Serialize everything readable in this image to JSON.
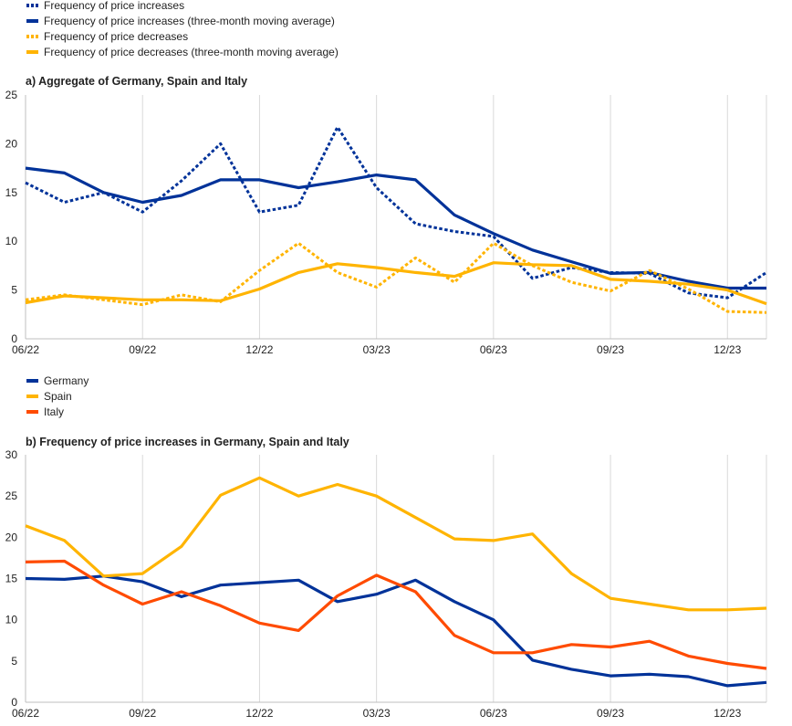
{
  "chart_data": [
    {
      "type": "line",
      "title": "a) Aggregate of Germany, Spain and Italy",
      "xlabel": "",
      "ylabel": "",
      "categories": [
        "06/22",
        "07/22",
        "08/22",
        "09/22",
        "10/22",
        "11/22",
        "12/22",
        "01/23",
        "02/23",
        "03/23",
        "04/23",
        "05/23",
        "06/23",
        "07/23",
        "08/23",
        "09/23",
        "10/23",
        "11/23",
        "12/23",
        "01/24"
      ],
      "x_tick_labels": [
        "06/22",
        "09/22",
        "12/22",
        "03/23",
        "06/23",
        "09/23",
        "12/23"
      ],
      "ylim": [
        0,
        25
      ],
      "y_ticks": [
        0,
        5,
        10,
        15,
        20,
        25
      ],
      "grid": "vertical",
      "legend_position": "top-left",
      "series": [
        {
          "name": "Frequency of price increases",
          "color": "#003299",
          "style": "dotted",
          "values": [
            16,
            14,
            15,
            13,
            16.2,
            20,
            13,
            13.7,
            21.7,
            15.5,
            11.8,
            11,
            10.5,
            6.2,
            7.3,
            6.8,
            6.7,
            4.7,
            4.2,
            6.8
          ]
        },
        {
          "name": "Frequency of price increases (three-month moving average)",
          "color": "#003299",
          "style": "solid",
          "values": [
            17.5,
            17,
            15,
            14,
            14.7,
            16.3,
            16.3,
            15.5,
            16.1,
            16.8,
            16.3,
            12.7,
            10.8,
            9.1,
            7.9,
            6.7,
            6.8,
            5.9,
            5.2,
            5.2
          ]
        },
        {
          "name": "Frequency of price decreases",
          "color": "#FFB400",
          "style": "dotted",
          "values": [
            4,
            4.5,
            4,
            3.5,
            4.5,
            3.8,
            7,
            9.8,
            6.8,
            5.3,
            8.3,
            5.8,
            9.8,
            7.5,
            5.8,
            4.9,
            7,
            5.1,
            2.8,
            2.7
          ]
        },
        {
          "name": "Frequency of price decreases (three-month moving average)",
          "color": "#FFB400",
          "style": "solid",
          "values": [
            3.7,
            4.4,
            4.2,
            4,
            4,
            3.9,
            5.1,
            6.8,
            7.7,
            7.3,
            6.8,
            6.4,
            7.8,
            7.6,
            7.5,
            6.1,
            5.9,
            5.6,
            5,
            3.6
          ]
        }
      ]
    },
    {
      "type": "line",
      "title": "b) Frequency of price increases in Germany, Spain and Italy",
      "xlabel": "",
      "ylabel": "",
      "categories": [
        "06/22",
        "07/22",
        "08/22",
        "09/22",
        "10/22",
        "11/22",
        "12/22",
        "01/23",
        "02/23",
        "03/23",
        "04/23",
        "05/23",
        "06/23",
        "07/23",
        "08/23",
        "09/23",
        "10/23",
        "11/23",
        "12/23",
        "01/24"
      ],
      "x_tick_labels": [
        "06/22",
        "09/22",
        "12/22",
        "03/23",
        "06/23",
        "09/23",
        "12/23"
      ],
      "ylim": [
        0,
        30
      ],
      "y_ticks": [
        0,
        5,
        10,
        15,
        20,
        25,
        30
      ],
      "grid": "vertical",
      "legend_position": "top-left",
      "series": [
        {
          "name": "Germany",
          "color": "#003299",
          "style": "solid",
          "values": [
            15,
            14.9,
            15.3,
            14.6,
            12.8,
            14.2,
            14.5,
            14.8,
            12.2,
            13.1,
            14.8,
            12.2,
            10,
            5.1,
            4,
            3.2,
            3.4,
            3.1,
            2,
            2.4
          ]
        },
        {
          "name": "Spain",
          "color": "#FFB400",
          "style": "solid",
          "values": [
            21.4,
            19.6,
            15.3,
            15.6,
            18.9,
            25.1,
            27.2,
            25,
            26.4,
            25,
            22.4,
            19.8,
            19.6,
            20.4,
            15.6,
            12.6,
            11.9,
            11.2,
            11.2,
            11.4
          ]
        },
        {
          "name": "Italy",
          "color": "#FF4B00",
          "style": "solid",
          "values": [
            17,
            17.1,
            14.2,
            11.9,
            13.4,
            11.7,
            9.6,
            8.7,
            12.9,
            15.4,
            13.4,
            8.1,
            6,
            6,
            7,
            6.7,
            7.4,
            5.6,
            4.7,
            4.1
          ]
        }
      ]
    }
  ]
}
